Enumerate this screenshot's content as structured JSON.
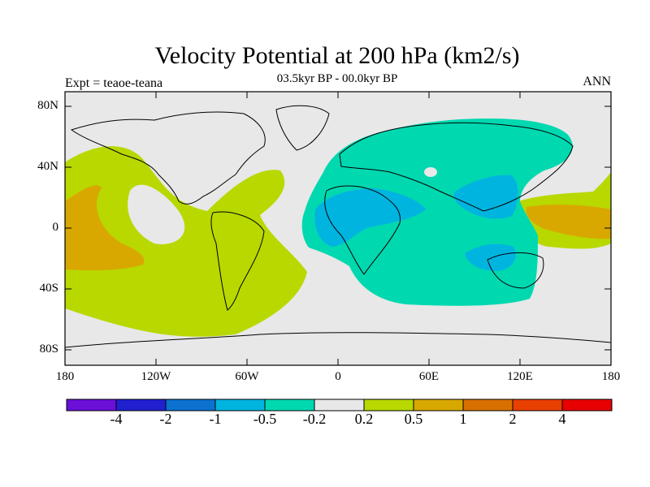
{
  "title": "Velocity Potential at 200 hPa (km2/s)",
  "subtitle": "03.5kyr BP - 00.0kyr BP",
  "left_label": "Expt = teaoe-teana",
  "right_label": "ANN",
  "lat_labels": [
    "80N",
    "40N",
    "0",
    "40S",
    "80S"
  ],
  "lon_labels": [
    "180",
    "120W",
    "60W",
    "0",
    "60E",
    "120E",
    "180"
  ],
  "colorbar": {
    "colors": [
      "#6b0fd9",
      "#2020d0",
      "#0b72d0",
      "#00b4e0",
      "#00d8b0",
      "#e8e8e8",
      "#b8d800",
      "#d8a800",
      "#d87000",
      "#e84000",
      "#e80000"
    ],
    "labels": [
      "-4",
      "-2",
      "-1",
      "-0.5",
      "-0.2",
      "0.2",
      "0.5",
      "1",
      "2",
      "4"
    ]
  },
  "legend_colors": {
    "ocean_land": "#e8e8e8",
    "neg_weak": "#00d8b0",
    "neg_mid": "#00b4e0",
    "pos_weak": "#b8d800",
    "pos_mid": "#d8a800",
    "pos_strong": "#d87000"
  }
}
